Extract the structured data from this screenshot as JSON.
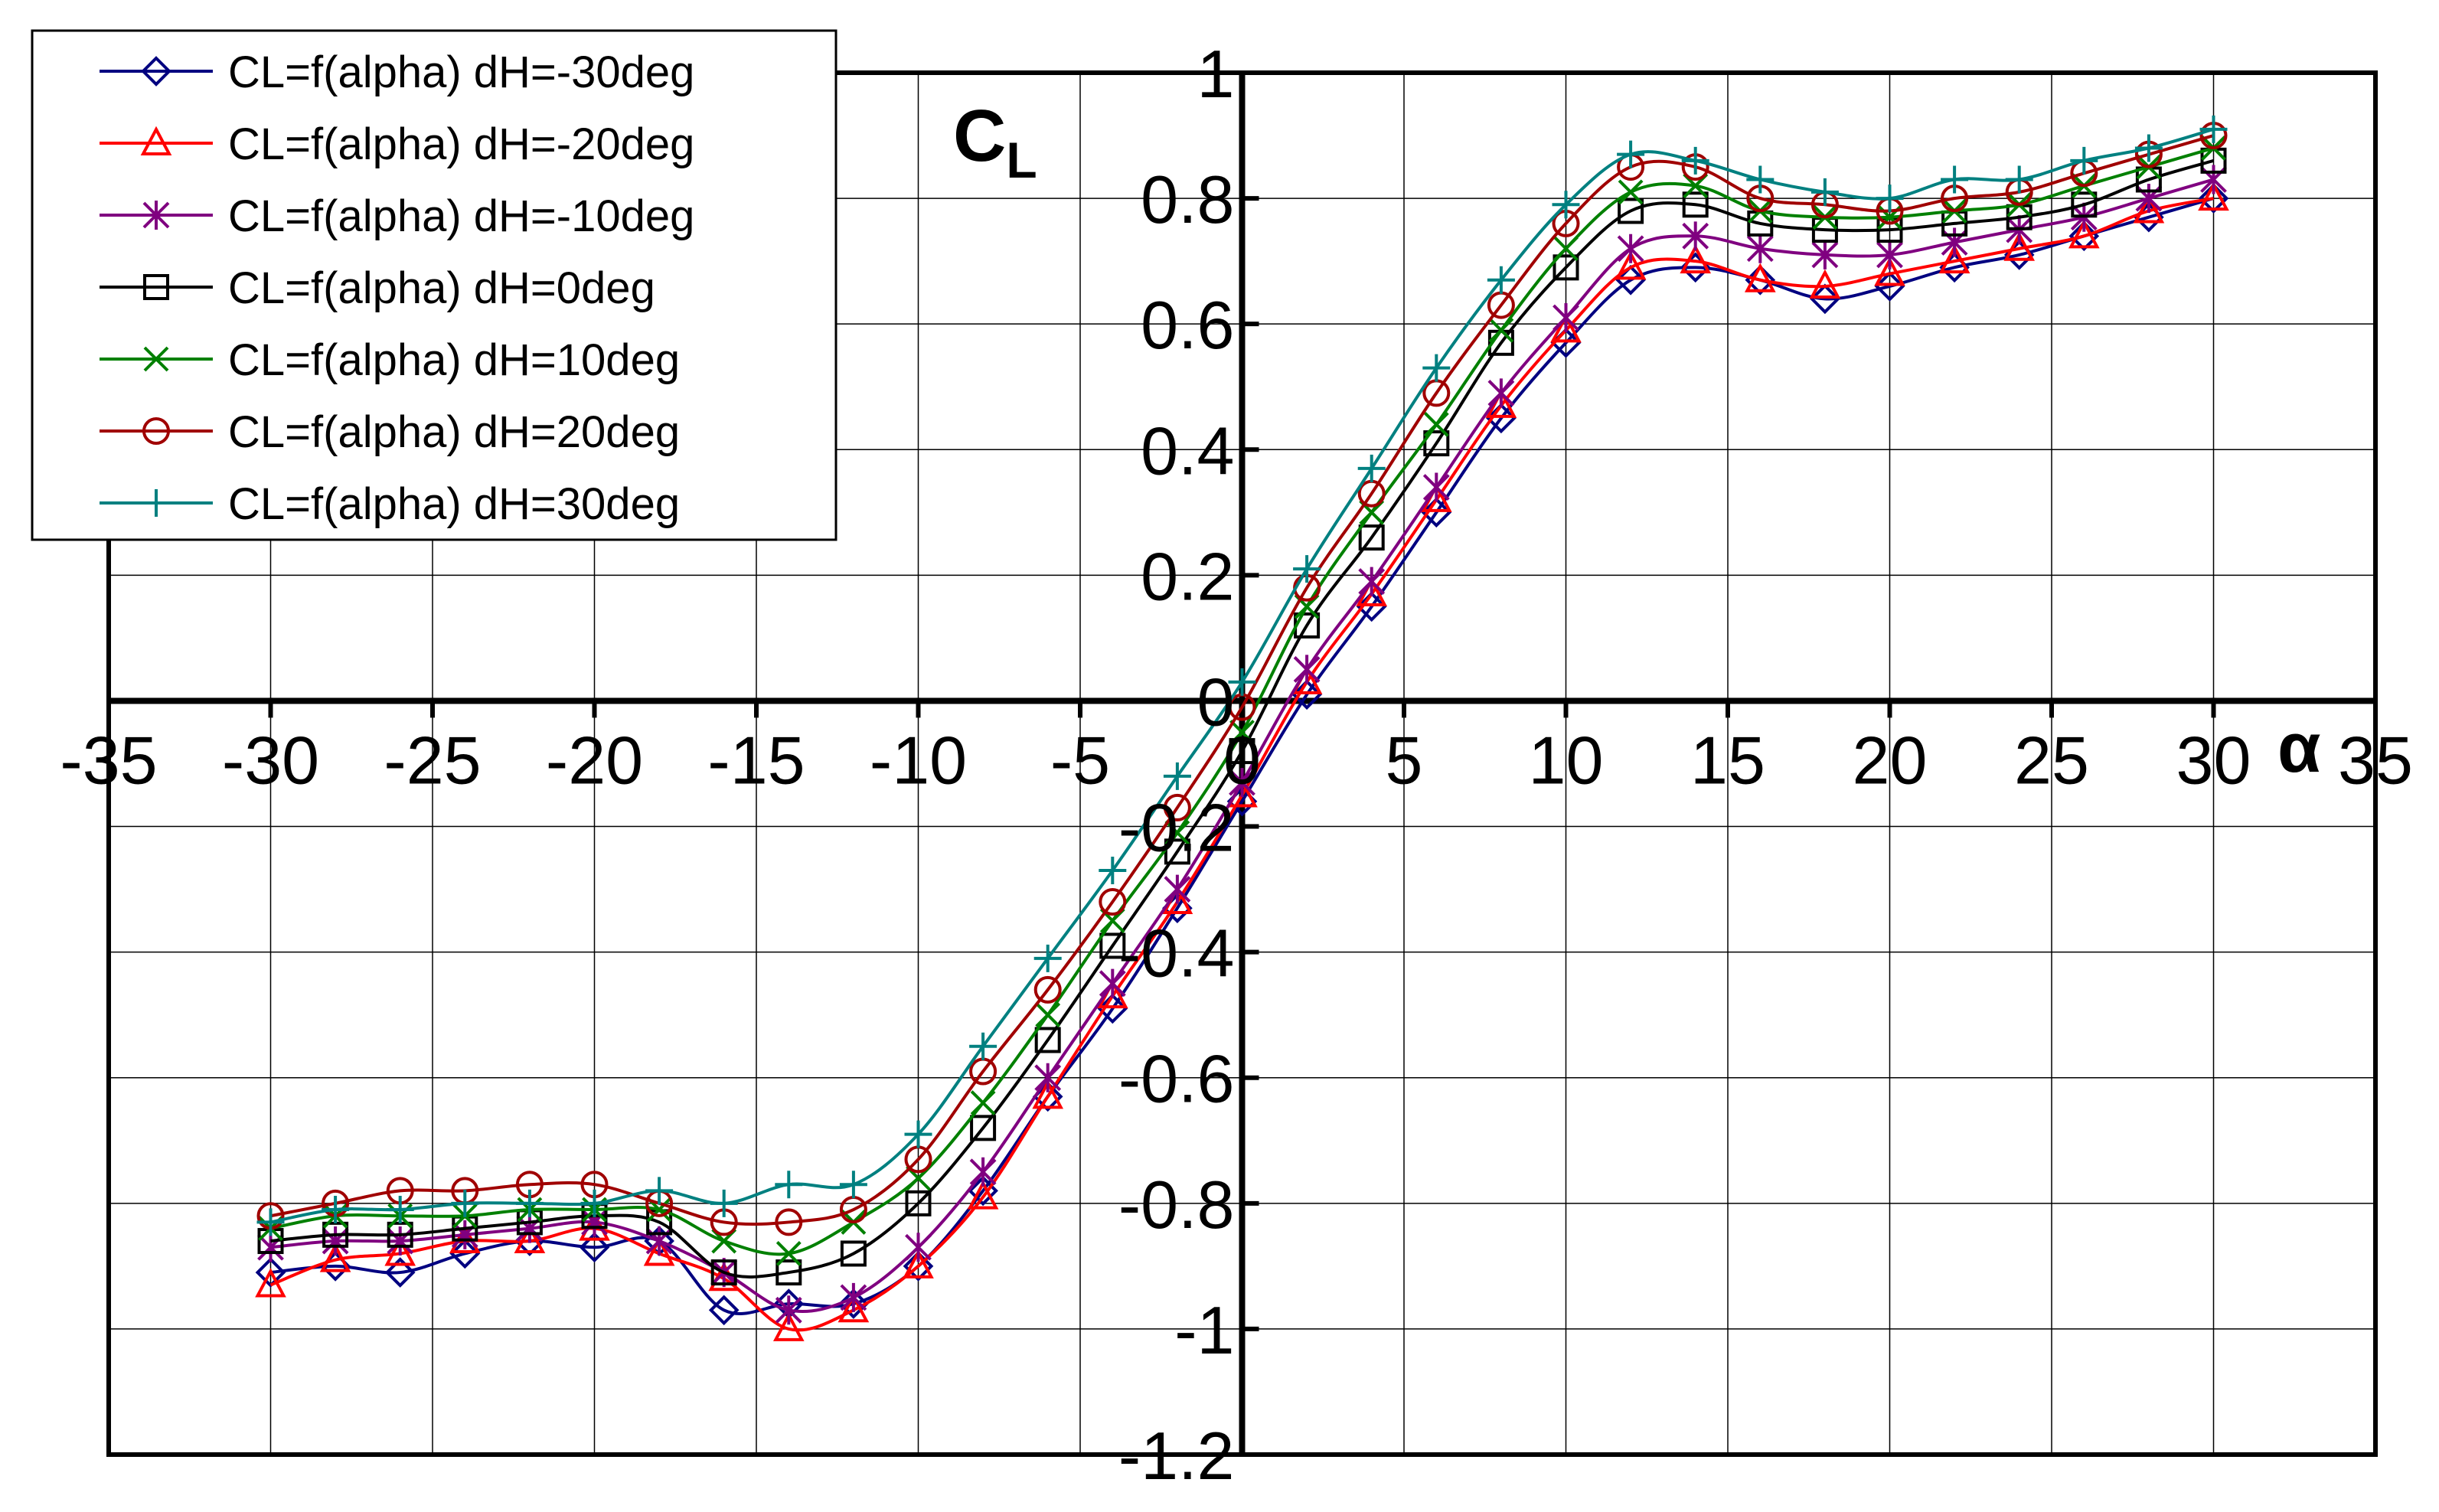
{
  "chart_data": {
    "type": "line",
    "title": "",
    "xlabel": "α",
    "ylabel": "C",
    "ylabel_sub": "L",
    "xlim": [
      -35,
      35
    ],
    "ylim": [
      -1.2,
      1
    ],
    "x_ticks": [
      -35,
      -30,
      -25,
      -20,
      -15,
      -10,
      -5,
      0,
      5,
      10,
      15,
      20,
      25,
      30,
      35
    ],
    "x_tick_labels": [
      "-35",
      "-30",
      "-25",
      "-20",
      "-15",
      "-10",
      "-5",
      "0",
      "5",
      "10",
      "15",
      "20",
      "25",
      "30",
      "35"
    ],
    "y_ticks": [
      -1.2,
      -1,
      -0.8,
      -0.6,
      -0.4,
      -0.2,
      0,
      0.2,
      0.4,
      0.6,
      0.8,
      1
    ],
    "y_tick_labels": [
      "-1.2",
      "-1",
      "-0.8",
      "-0.6",
      "-0.4",
      "-0.2",
      "0",
      "0.2",
      "0.4",
      "0.6",
      "0.8",
      "1"
    ],
    "grid": true,
    "legend_position": "top-left",
    "x": [
      -30,
      -28,
      -26,
      -24,
      -22,
      -20,
      -18,
      -16,
      -14,
      -12,
      -10,
      -8,
      -6,
      -4,
      -2,
      0,
      2,
      4,
      6,
      8,
      10,
      12,
      14,
      16,
      18,
      20,
      22,
      24,
      26,
      28,
      30
    ],
    "series": [
      {
        "name": "CL=f(alpha) dH=-30deg",
        "color": "#000080",
        "marker": "diamond",
        "values": [
          -0.91,
          -0.9,
          -0.91,
          -0.88,
          -0.86,
          -0.87,
          -0.86,
          -0.97,
          -0.96,
          -0.96,
          -0.9,
          -0.78,
          -0.63,
          -0.49,
          -0.33,
          -0.16,
          0.01,
          0.15,
          0.3,
          0.45,
          0.57,
          0.67,
          0.69,
          0.67,
          0.64,
          0.66,
          0.69,
          0.71,
          0.74,
          0.77,
          0.8
        ]
      },
      {
        "name": "CL=f(alpha) dH=-20deg",
        "color": "#FF0000",
        "marker": "triangle",
        "values": [
          -0.93,
          -0.89,
          -0.88,
          -0.86,
          -0.86,
          -0.84,
          -0.88,
          -0.92,
          -1.0,
          -0.97,
          -0.9,
          -0.79,
          -0.63,
          -0.47,
          -0.32,
          -0.15,
          0.03,
          0.17,
          0.32,
          0.47,
          0.59,
          0.69,
          0.7,
          0.67,
          0.66,
          0.68,
          0.7,
          0.72,
          0.74,
          0.78,
          0.8
        ]
      },
      {
        "name": "CL=f(alpha) dH=-10deg",
        "color": "#800080",
        "marker": "asterisk",
        "values": [
          -0.87,
          -0.86,
          -0.86,
          -0.85,
          -0.84,
          -0.83,
          -0.86,
          -0.91,
          -0.97,
          -0.95,
          -0.87,
          -0.75,
          -0.6,
          -0.45,
          -0.3,
          -0.13,
          0.05,
          0.19,
          0.34,
          0.49,
          0.61,
          0.72,
          0.74,
          0.72,
          0.71,
          0.71,
          0.73,
          0.75,
          0.77,
          0.8,
          0.83
        ]
      },
      {
        "name": "CL=f(alpha) dH=0deg",
        "color": "#000000",
        "marker": "square",
        "values": [
          -0.86,
          -0.85,
          -0.85,
          -0.84,
          -0.83,
          -0.82,
          -0.83,
          -0.91,
          -0.91,
          -0.88,
          -0.8,
          -0.68,
          -0.54,
          -0.39,
          -0.24,
          -0.08,
          0.12,
          0.26,
          0.41,
          0.57,
          0.69,
          0.78,
          0.79,
          0.76,
          0.75,
          0.75,
          0.76,
          0.77,
          0.79,
          0.83,
          0.86
        ]
      },
      {
        "name": "CL=f(alpha) dH=10deg",
        "color": "#008000",
        "marker": "x",
        "values": [
          -0.84,
          -0.82,
          -0.82,
          -0.82,
          -0.81,
          -0.81,
          -0.81,
          -0.86,
          -0.88,
          -0.83,
          -0.76,
          -0.64,
          -0.5,
          -0.35,
          -0.21,
          -0.05,
          0.15,
          0.3,
          0.44,
          0.59,
          0.72,
          0.81,
          0.82,
          0.78,
          0.77,
          0.77,
          0.78,
          0.79,
          0.82,
          0.85,
          0.88
        ]
      },
      {
        "name": "CL=f(alpha) dH=20deg",
        "color": "#A00000",
        "marker": "circle",
        "values": [
          -0.82,
          -0.8,
          -0.78,
          -0.78,
          -0.77,
          -0.77,
          -0.8,
          -0.83,
          -0.83,
          -0.81,
          -0.73,
          -0.59,
          -0.46,
          -0.32,
          -0.17,
          -0.01,
          0.18,
          0.33,
          0.49,
          0.63,
          0.76,
          0.85,
          0.85,
          0.8,
          0.79,
          0.78,
          0.8,
          0.81,
          0.84,
          0.87,
          0.9
        ]
      },
      {
        "name": "CL=f(alpha) dH=30deg",
        "color": "#008080",
        "marker": "plus",
        "values": [
          -0.83,
          -0.81,
          -0.81,
          -0.8,
          -0.8,
          -0.8,
          -0.78,
          -0.8,
          -0.77,
          -0.77,
          -0.69,
          -0.55,
          -0.41,
          -0.27,
          -0.12,
          0.03,
          0.21,
          0.37,
          0.53,
          0.67,
          0.79,
          0.87,
          0.86,
          0.83,
          0.81,
          0.8,
          0.83,
          0.83,
          0.86,
          0.88,
          0.91
        ]
      }
    ]
  }
}
